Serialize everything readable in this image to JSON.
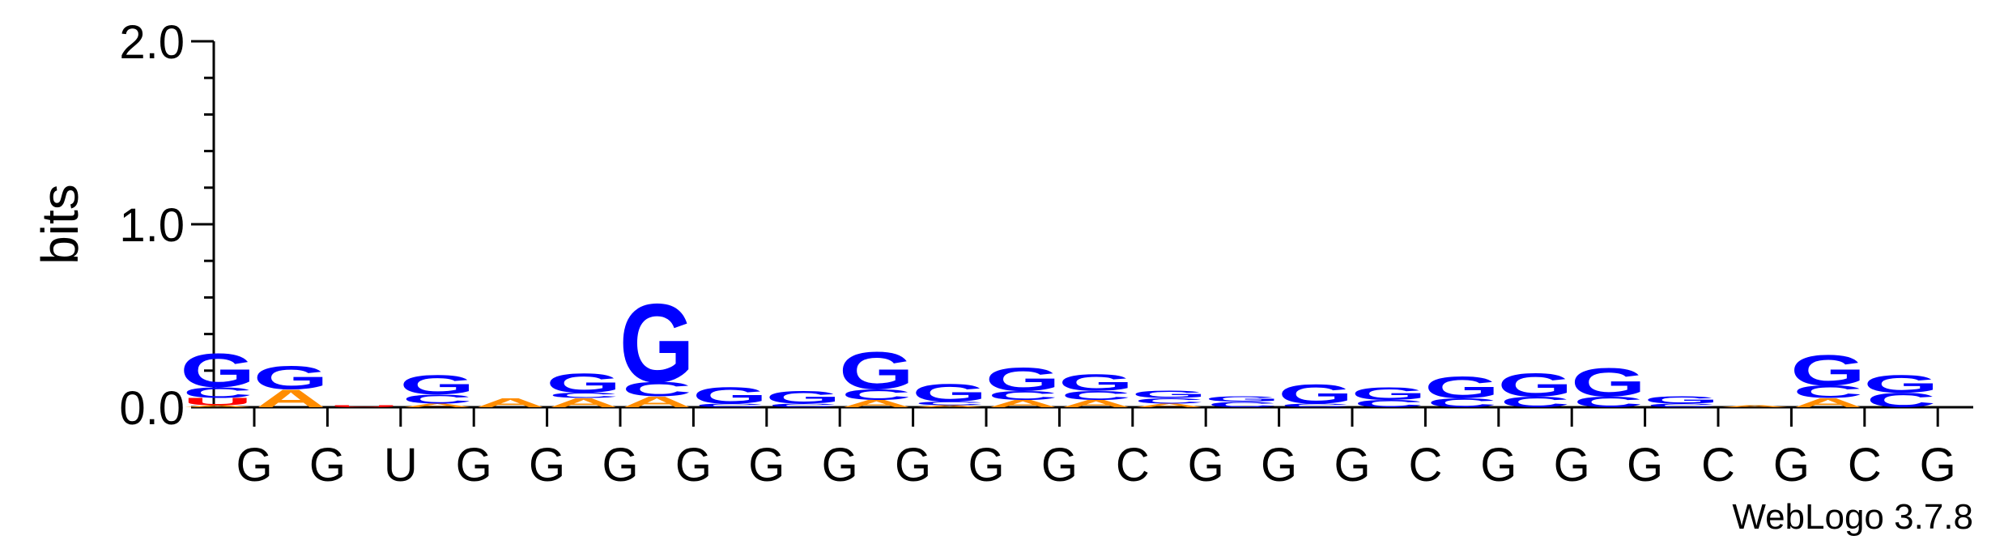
{
  "chart_data": {
    "type": "sequence-logo",
    "ylabel": "bits",
    "ylim": [
      0,
      2.0
    ],
    "yticks": [
      "0.0",
      "1.0",
      "2.0"
    ],
    "xtick_labels": [
      "G",
      "G",
      "U",
      "G",
      "G",
      "G",
      "G",
      "G",
      "G",
      "G",
      "G",
      "G",
      "C",
      "G",
      "G",
      "G",
      "C",
      "G",
      "G",
      "G",
      "C",
      "G",
      "C",
      "G"
    ],
    "colors": {
      "G": "#0000ff",
      "C": "#0000ff",
      "U": "#ff0000",
      "A": "#ff8c00"
    },
    "positions": [
      [
        {
          "l": "A",
          "h": 0.01
        },
        {
          "l": "U",
          "h": 0.04
        },
        {
          "l": "C",
          "h": 0.06
        },
        {
          "l": "G",
          "h": 0.19
        }
      ],
      [
        {
          "l": "A",
          "h": 0.1
        },
        {
          "l": "G",
          "h": 0.13
        }
      ],
      [
        {
          "l": "U",
          "h": 0.01
        }
      ],
      [
        {
          "l": "A",
          "h": 0.02
        },
        {
          "l": "C",
          "h": 0.05
        },
        {
          "l": "G",
          "h": 0.11
        }
      ],
      [
        {
          "l": "A",
          "h": 0.05
        }
      ],
      [
        {
          "l": "A",
          "h": 0.05
        },
        {
          "l": "C",
          "h": 0.03
        },
        {
          "l": "G",
          "h": 0.11
        }
      ],
      [
        {
          "l": "A",
          "h": 0.06
        },
        {
          "l": "C",
          "h": 0.08
        },
        {
          "l": "G",
          "h": 0.44
        }
      ],
      [
        {
          "l": "C",
          "h": 0.02
        },
        {
          "l": "G",
          "h": 0.09
        }
      ],
      [
        {
          "l": "C",
          "h": 0.02
        },
        {
          "l": "G",
          "h": 0.07
        }
      ],
      [
        {
          "l": "A",
          "h": 0.04
        },
        {
          "l": "C",
          "h": 0.06
        },
        {
          "l": "G",
          "h": 0.21
        }
      ],
      [
        {
          "l": "A",
          "h": 0.01
        },
        {
          "l": "C",
          "h": 0.02
        },
        {
          "l": "G",
          "h": 0.1
        }
      ],
      [
        {
          "l": "A",
          "h": 0.04
        },
        {
          "l": "C",
          "h": 0.05
        },
        {
          "l": "G",
          "h": 0.13
        }
      ],
      [
        {
          "l": "A",
          "h": 0.04
        },
        {
          "l": "C",
          "h": 0.05
        },
        {
          "l": "G",
          "h": 0.09
        }
      ],
      [
        {
          "l": "A",
          "h": 0.02
        },
        {
          "l": "C",
          "h": 0.03
        },
        {
          "l": "G",
          "h": 0.04
        }
      ],
      [
        {
          "l": "C",
          "h": 0.03
        },
        {
          "l": "G",
          "h": 0.03
        }
      ],
      [
        {
          "l": "C",
          "h": 0.02
        },
        {
          "l": "G",
          "h": 0.11
        }
      ],
      [
        {
          "l": "C",
          "h": 0.04
        },
        {
          "l": "G",
          "h": 0.07
        }
      ],
      [
        {
          "l": "C",
          "h": 0.05
        },
        {
          "l": "G",
          "h": 0.12
        }
      ],
      [
        {
          "l": "C",
          "h": 0.06
        },
        {
          "l": "G",
          "h": 0.13
        }
      ],
      [
        {
          "l": "C",
          "h": 0.06
        },
        {
          "l": "G",
          "h": 0.16
        }
      ],
      [
        {
          "l": "C",
          "h": 0.02
        },
        {
          "l": "G",
          "h": 0.04
        }
      ],
      [
        {
          "l": "A",
          "h": 0.01
        }
      ],
      [
        {
          "l": "A",
          "h": 0.05
        },
        {
          "l": "C",
          "h": 0.07
        },
        {
          "l": "G",
          "h": 0.17
        }
      ],
      [
        {
          "l": "C",
          "h": 0.08
        },
        {
          "l": "G",
          "h": 0.1
        }
      ]
    ]
  },
  "footer": {
    "version": "WebLogo 3.7.8"
  }
}
